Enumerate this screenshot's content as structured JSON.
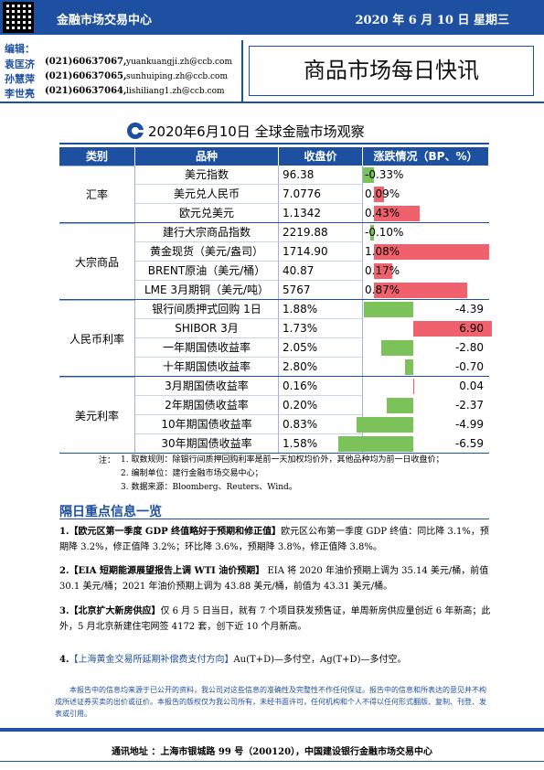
{
  "header": {
    "org": "金融市场交易中心",
    "date": "2020 年 6 月 10 日 星期三"
  },
  "editors": {
    "label": "编辑：",
    "people": [
      {
        "name": "袁匡济",
        "phone": "(021)60637067,",
        "email": "yuankuangji.zh@ccb.com"
      },
      {
        "name": "孙慧萍",
        "phone": "(021)60637065,",
        "email": "sunhuiping.zh@ccb.com"
      },
      {
        "name": "李世亮",
        "phone": "(021)60637064,",
        "email": "lishiliang1.zh@ccb.com"
      }
    ]
  },
  "title": "商品市场每日快讯",
  "table": {
    "title": "2020年6月10日 全球金融市场观察",
    "columns": [
      "类别",
      "品种",
      "收盘价",
      "涨跌情况（BP、%）"
    ],
    "groups": [
      {
        "category": "汇率",
        "rows": [
          {
            "item": "美元指数",
            "close": "96.38",
            "change": "-0.33%"
          },
          {
            "item": "美元兑人民币",
            "close": "7.0776",
            "change": "0.09%"
          },
          {
            "item": "欧元兑美元",
            "close": "1.1342",
            "change": "0.43%"
          }
        ]
      },
      {
        "category": "大宗商品",
        "rows": [
          {
            "item": "建行大宗商品指数",
            "close": "2219.88",
            "change": "-0.10%"
          },
          {
            "item": "黄金现货（美元/盎司）",
            "close": "1714.90",
            "change": "1.08%"
          },
          {
            "item": "BRENT原油（美元/桶）",
            "close": "40.87",
            "change": "0.17%"
          },
          {
            "item": "LME 3月期铜（美元/吨）",
            "close": "5767",
            "change": "0.87%"
          }
        ]
      },
      {
        "category": "人民币利率",
        "rows": [
          {
            "item": "银行间质押式回购 1日",
            "close": "1.88%",
            "change": "-4.39"
          },
          {
            "item": "SHIBOR 3月",
            "close": "1.73%",
            "change": "6.90"
          },
          {
            "item": "一年期国债收益率",
            "close": "2.05%",
            "change": "-2.80"
          },
          {
            "item": "十年期国债收益率",
            "close": "2.80%",
            "change": "-0.70"
          }
        ]
      },
      {
        "category": "美元利率",
        "rows": [
          {
            "item": "3月期国债收益率",
            "close": "0.16%",
            "change": "0.04"
          },
          {
            "item": "2年期国债收益率",
            "close": "0.20%",
            "change": "-2.37"
          },
          {
            "item": "10年期国债收益率",
            "close": "0.83%",
            "change": "-4.99"
          },
          {
            "item": "30年期国债收益率",
            "close": "1.58%",
            "change": "-6.59"
          }
        ]
      }
    ]
  },
  "notes": {
    "label": "注：",
    "items": [
      "1. 取数规则：除银行间质押回购利率是前一天加权均价外，其他品种均为前一日收盘价；",
      "2. 编制单位：建行金融市场交易中心；",
      "3. 数据来源：Bloomberg、Reuters、Wind。"
    ]
  },
  "news": {
    "title": "隔日重点信息一览",
    "items": [
      {
        "num": "1.",
        "headline": "【欧元区第一季度 GDP 终值略好于预期和修正值】",
        "text": "欧元区公布第一季度 GDP 终值：同比降 3.1%，预期降 3.2%，修正值降 3.2%；环比降 3.6%，预期降 3.8%，修正值降 3.8%。"
      },
      {
        "num": "2.",
        "headline": "【EIA 短期能源展望报告上调 WTI 油价预期】",
        "text": " EIA 将 2020 年油价预期上调为 35.14 美元/桶，前值 30.1 美元/桶；2021 年油价预期上调为 43.88 美元/桶，前值为 43.31 美元/桶。"
      },
      {
        "num": "3.",
        "headline": "【北京扩大新房供应】",
        "text": "仅 6 月 5 日当日，就有 7 个项目获发预售证，单周新房供应量创近 6 年新高；此外，5 月北京新建住宅网签 4172 套，创下近 10 个月新高。"
      },
      {
        "num": "4.",
        "headline": "【上海黄金交易所延期补偿费支付方向】",
        "text": "Au(T+D)—多付空，Ag(T+D)—多付空。"
      }
    ]
  },
  "disclaimer": "本报告中的信息均来源于已公开的资料，我公司对这些信息的准确性及完整性不作任何保证。报告中的信息和所表达的意见并不构成所述证券买卖的出价或征价。本报告的版权仅为我公司所有，未经书面许可，任何机构和个人不得以任何形式翻版、复制、刊登、发表或引用。",
  "footer": "通讯地址 ：上海市银城路 99 号（200120），中国建设银行金融市场交易中心"
}
